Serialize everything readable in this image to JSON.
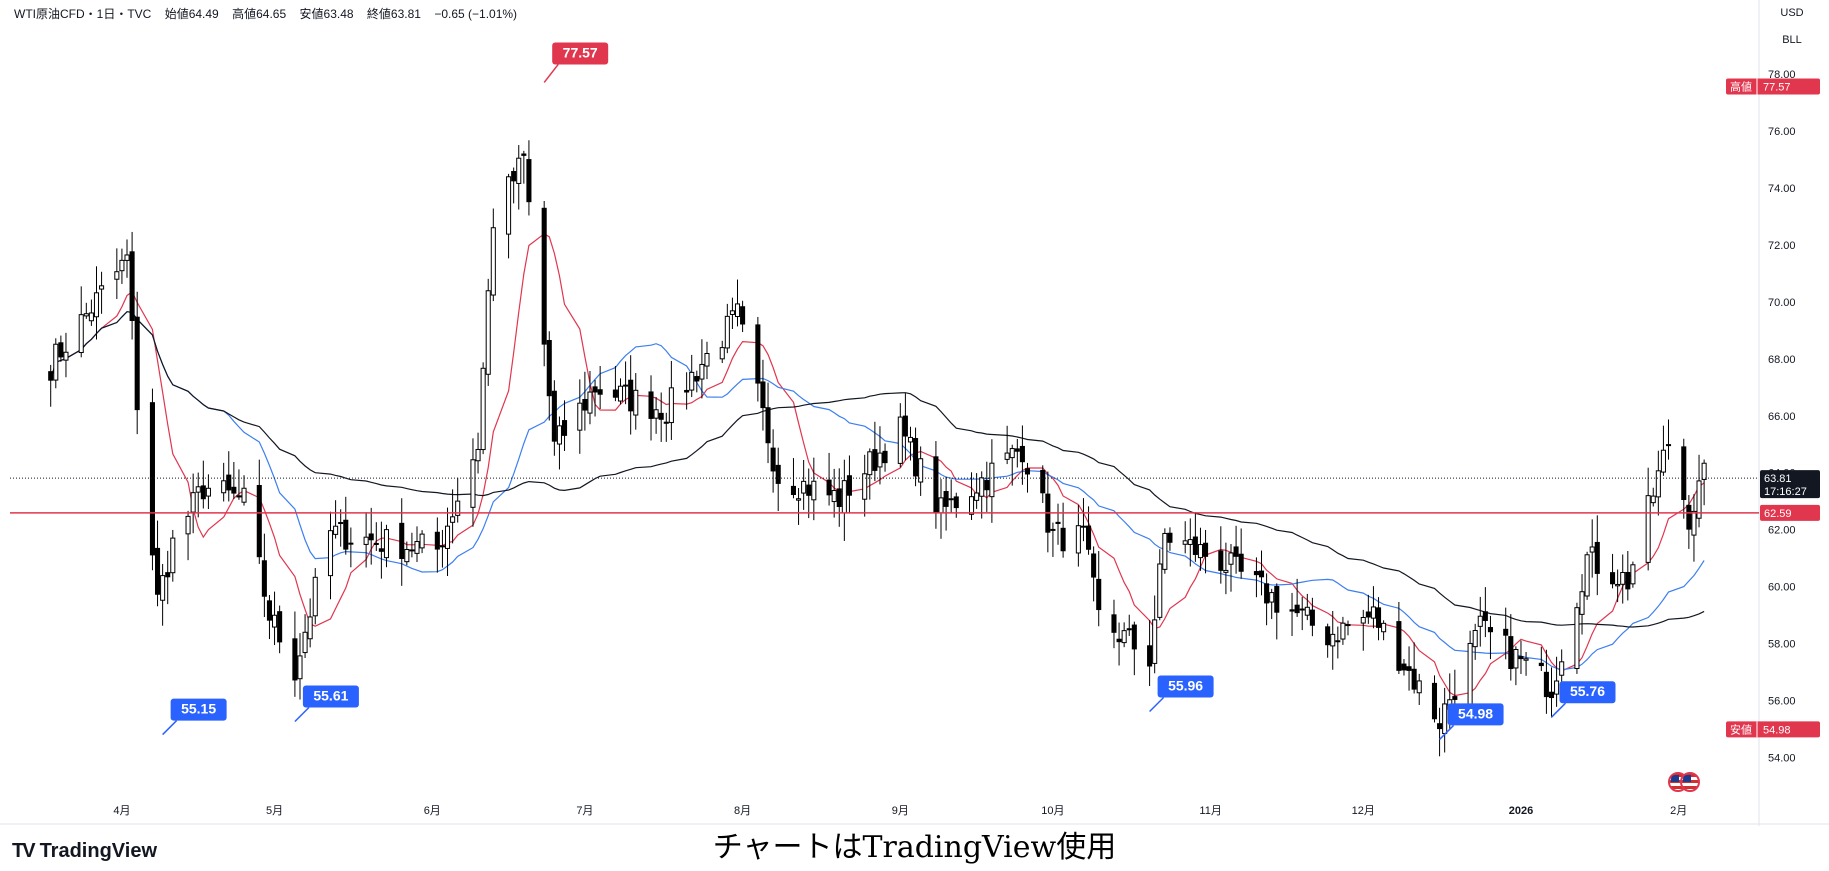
{
  "header": {
    "symbol": "WTI原油CFD・1日・TVC",
    "open_label": "始値",
    "open": "64.49",
    "high_label": "高値",
    "high": "64.65",
    "low_label": "安値",
    "low": "63.48",
    "close_label": "終値",
    "close": "63.81",
    "change": "−0.65 (−1.01%)"
  },
  "currency": {
    "unit": "USD",
    "unit2": "BLL"
  },
  "price_labels": {
    "current_price": "63.81",
    "countdown": "17:16:27",
    "hline_value": "62.59",
    "high_tag": "高値",
    "high_value": "77.57",
    "low_tag": "安値",
    "low_value": "54.98"
  },
  "brand": {
    "logo": "TV",
    "name": "TradingView"
  },
  "caption": "チャートはTradingView使用",
  "colors": {
    "hline": "#e0364e",
    "ma_short": "#e0364e",
    "ma_mid": "#3d7ff0",
    "ma_long": "#131722",
    "callout_low": "#2962ff",
    "callout_high": "#e0364e",
    "candle": "#000000"
  },
  "chart_data": {
    "type": "candlestick",
    "title": "WTI原油CFD・1日・TVC",
    "ylim": [
      52.5,
      78.5
    ],
    "y_ticks": [
      54,
      56,
      58,
      60,
      62,
      64,
      66,
      68,
      70,
      72,
      74,
      76,
      78
    ],
    "y_tick_labels": [
      "54.00",
      "56.00",
      "58.00",
      "60.00",
      "62.00",
      "64.00",
      "66.00",
      "68.00",
      "70.00",
      "72.00",
      "74.00",
      "76.00",
      "78.00"
    ],
    "x_labels": [
      "4月",
      "5月",
      "6月",
      "7月",
      "8月",
      "9月",
      "10月",
      "11月",
      "12月",
      "2026",
      "2月"
    ],
    "horizontal_line": 62.59,
    "current_price": 63.81,
    "annotations": [
      {
        "label": "77.57",
        "kind": "high",
        "date": "2025-06-23"
      },
      {
        "label": "55.15",
        "kind": "low",
        "date": "2025-04-09"
      },
      {
        "label": "55.61",
        "kind": "low",
        "date": "2025-05-05"
      },
      {
        "label": "55.96",
        "kind": "low",
        "date": "2025-10-20"
      },
      {
        "label": "54.98",
        "kind": "low",
        "date": "2025-12-16"
      },
      {
        "label": "55.76",
        "kind": "low",
        "date": "2026-01-07"
      }
    ],
    "anchors": [
      [
        "2025-03-18",
        67.8
      ],
      [
        "2025-03-26",
        69.8
      ],
      [
        "2025-04-02",
        71.5
      ],
      [
        "2025-04-04",
        66.5
      ],
      [
        "2025-04-08",
        59.5
      ],
      [
        "2025-04-11",
        61.5
      ],
      [
        "2025-04-17",
        63.5
      ],
      [
        "2025-04-25",
        63.0
      ],
      [
        "2025-04-30",
        59.0
      ],
      [
        "2025-05-05",
        57.1
      ],
      [
        "2025-05-12",
        61.9
      ],
      [
        "2025-05-21",
        61.6
      ],
      [
        "2025-06-02",
        61.3
      ],
      [
        "2025-06-10",
        65.0
      ],
      [
        "2025-06-13",
        72.9
      ],
      [
        "2025-06-19",
        75.0
      ],
      [
        "2025-06-23",
        68.5
      ],
      [
        "2025-06-25",
        64.9
      ],
      [
        "2025-07-03",
        67.0
      ],
      [
        "2025-07-17",
        66.2
      ],
      [
        "2025-07-31",
        69.5
      ],
      [
        "2025-08-08",
        63.9
      ],
      [
        "2025-08-20",
        63.1
      ],
      [
        "2025-09-01",
        65.5
      ],
      [
        "2025-09-09",
        62.6
      ],
      [
        "2025-09-25",
        64.9
      ],
      [
        "2025-10-01",
        61.8
      ],
      [
        "2025-10-07",
        61.7
      ],
      [
        "2025-10-10",
        58.9
      ],
      [
        "2025-10-20",
        57.5
      ],
      [
        "2025-10-23",
        61.8
      ],
      [
        "2025-11-03",
        60.9
      ],
      [
        "2025-11-14",
        59.5
      ],
      [
        "2025-11-24",
        58.3
      ],
      [
        "2025-12-03",
        59.0
      ],
      [
        "2025-12-16",
        55.3
      ],
      [
        "2025-12-24",
        58.5
      ],
      [
        "2026-01-07",
        56.5
      ],
      [
        "2026-01-14",
        61.0
      ],
      [
        "2026-01-22",
        60.2
      ],
      [
        "2026-01-30",
        65.1
      ],
      [
        "2026-02-03",
        62.5
      ],
      [
        "2026-02-06",
        63.81
      ]
    ]
  }
}
